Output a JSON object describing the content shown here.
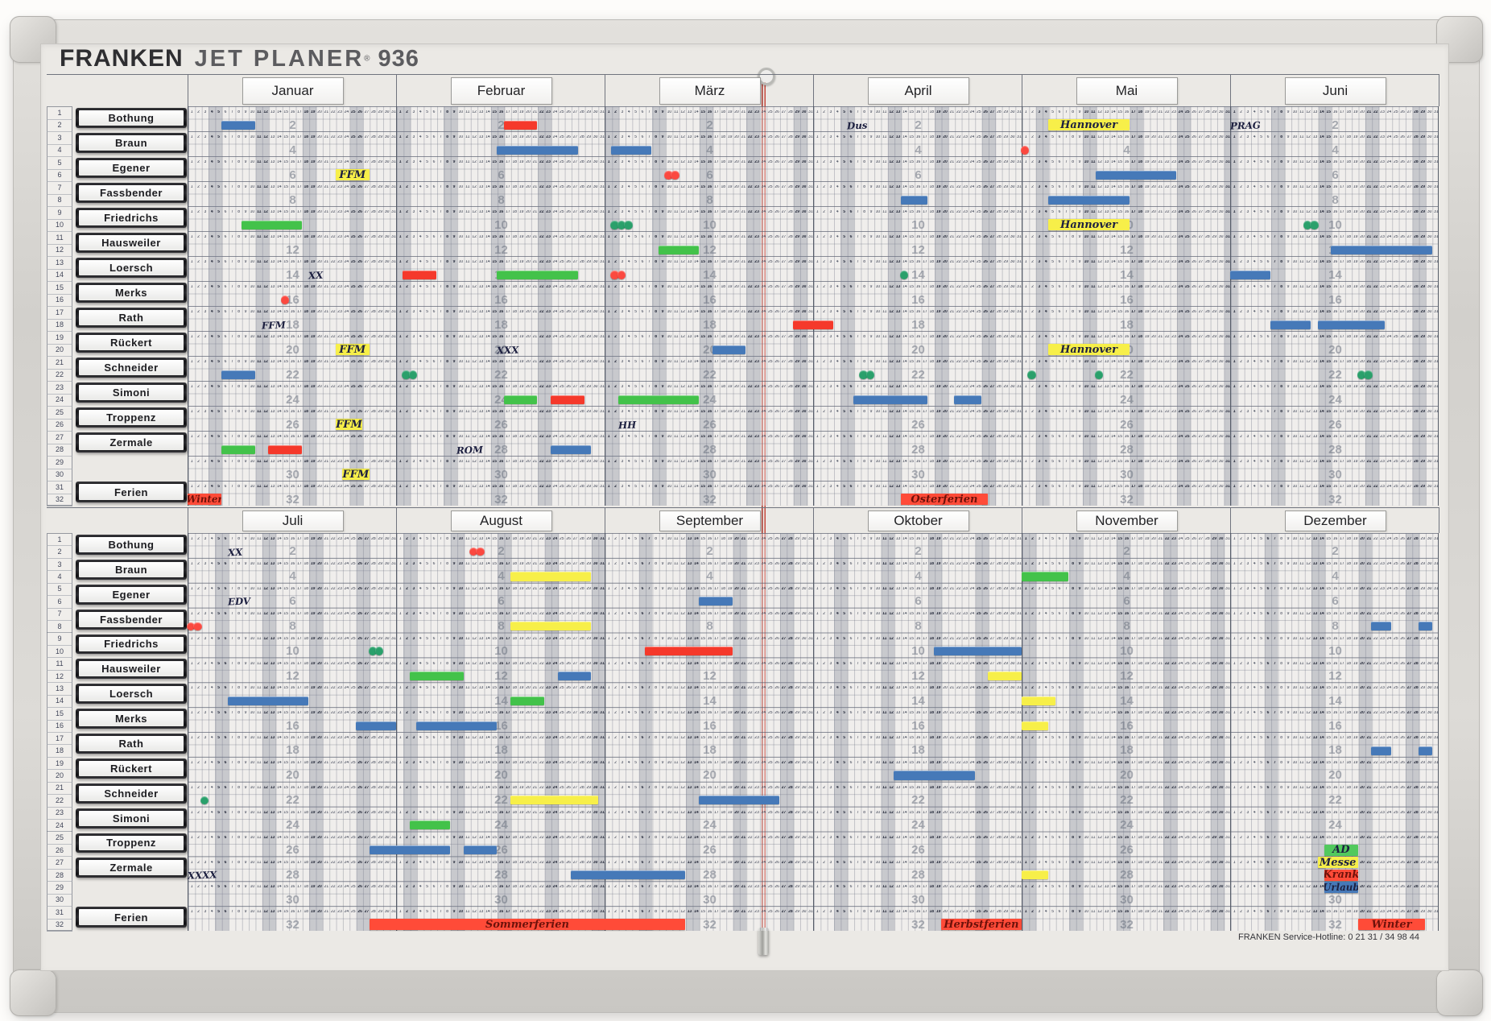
{
  "title": {
    "brand": "FRANKEN",
    "product": "JET PLANER",
    "registered": "®",
    "model": "936"
  },
  "footer": {
    "service_hotline": "FRANKEN Service-Hotline: 0 21 31 / 34 98 44"
  },
  "rows_per_half": 32,
  "days_per_strip": 31,
  "personnel": [
    "Bothung",
    "Braun",
    "Egener",
    "Fassbender",
    "Friedrichs",
    "Hausweiler",
    "Loersch",
    "Merks",
    "Rath",
    "Rückert",
    "Schneider",
    "Simoni",
    "Troppenz",
    "Zermale"
  ],
  "ferien_label": "Ferien",
  "months": [
    {
      "name": "Januar",
      "weekend_days": [
        4,
        5,
        11,
        12,
        18,
        19,
        25,
        26
      ]
    },
    {
      "name": "Februar",
      "weekend_days": [
        1,
        2,
        8,
        9,
        15,
        16,
        22,
        23
      ]
    },
    {
      "name": "März",
      "weekend_days": [
        1,
        2,
        8,
        9,
        15,
        16,
        22,
        23,
        29,
        30
      ]
    },
    {
      "name": "April",
      "weekend_days": [
        5,
        6,
        12,
        13,
        19,
        20,
        26,
        27
      ]
    },
    {
      "name": "Mai",
      "weekend_days": [
        3,
        4,
        10,
        11,
        17,
        18,
        24,
        25,
        31
      ]
    },
    {
      "name": "Juni",
      "weekend_days": [
        1,
        7,
        8,
        14,
        15,
        21,
        22,
        28,
        29
      ]
    },
    {
      "name": "Juli",
      "weekend_days": [
        5,
        6,
        12,
        13,
        19,
        20,
        26,
        27
      ]
    },
    {
      "name": "August",
      "weekend_days": [
        2,
        3,
        9,
        10,
        16,
        17,
        23,
        24,
        30,
        31
      ]
    },
    {
      "name": "September",
      "weekend_days": [
        6,
        7,
        13,
        14,
        20,
        21,
        27,
        28
      ]
    },
    {
      "name": "Oktober",
      "weekend_days": [
        4,
        5,
        11,
        12,
        18,
        19,
        25,
        26
      ]
    },
    {
      "name": "November",
      "weekend_days": [
        1,
        2,
        8,
        9,
        15,
        16,
        22,
        23,
        29,
        30
      ]
    },
    {
      "name": "Dezember",
      "weekend_days": [
        6,
        7,
        13,
        14,
        20,
        21,
        27,
        28
      ]
    }
  ],
  "colors": {
    "blue": "#4679b8",
    "green": "#43c24a",
    "red": "#f5392b",
    "yellow": "#f7ef49",
    "dot_green": "#2aa06b",
    "dot_red": "#fb4940",
    "tag_red": "#ff4b38",
    "tag_green": "#52c95d",
    "ink": "#1d2040",
    "red_ink": "#6e120b",
    "weekend": "rgba(122,129,147,0.34)"
  },
  "magnets": [
    {
      "p": "Bothung",
      "r": 2,
      "m": "Januar",
      "d1": 6,
      "d2": 10,
      "k": "bar",
      "c": "blue"
    },
    {
      "p": "Bothung",
      "r": 2,
      "m": "Februar",
      "d1": 17,
      "d2": 21,
      "k": "bar",
      "c": "red"
    },
    {
      "p": "Bothung",
      "r": 2,
      "m": "April",
      "d1": 6,
      "d2": 9,
      "k": "note",
      "t": "Dus"
    },
    {
      "p": "Bothung",
      "r": 2,
      "m": "Mai",
      "d1": 5,
      "d2": 16,
      "k": "tag",
      "c": "yellow",
      "t": "Hannover"
    },
    {
      "p": "Bothung",
      "r": 2,
      "m": "Juni",
      "d1": 1,
      "d2": 4,
      "k": "note",
      "t": "PRAG"
    },
    {
      "p": "Braun",
      "r": 4,
      "m": "Februar",
      "d1": 16,
      "d2": 27,
      "k": "bar",
      "c": "blue"
    },
    {
      "p": "Braun",
      "r": 4,
      "m": "März",
      "d1": 2,
      "d2": 7,
      "k": "bar",
      "c": "blue"
    },
    {
      "p": "Braun",
      "r": 4,
      "m": "Mai",
      "d1": 1,
      "d2": 1,
      "k": "dot",
      "c": "red"
    },
    {
      "p": "Egener",
      "r": 6,
      "m": "Januar",
      "d1": 23,
      "d2": 27,
      "k": "tag",
      "c": "yellow",
      "t": "FFM"
    },
    {
      "p": "Egener",
      "r": 6,
      "m": "März",
      "d1": 10,
      "d2": 11,
      "k": "dot",
      "c": "red"
    },
    {
      "p": "Egener",
      "r": 6,
      "m": "Mai",
      "d1": 12,
      "d2": 23,
      "k": "bar",
      "c": "blue"
    },
    {
      "p": "Fassbender",
      "r": 8,
      "m": "April",
      "d1": 14,
      "d2": 17,
      "k": "bar",
      "c": "blue"
    },
    {
      "p": "Fassbender",
      "r": 8,
      "m": "Mai",
      "d1": 5,
      "d2": 16,
      "k": "bar",
      "c": "blue"
    },
    {
      "p": "Friedrichs",
      "r": 10,
      "m": "Januar",
      "d1": 9,
      "d2": 17,
      "k": "bar",
      "c": "green"
    },
    {
      "p": "Friedrichs",
      "r": 10,
      "m": "März",
      "d1": 2,
      "d2": 4,
      "k": "dot",
      "c": "green"
    },
    {
      "p": "Friedrichs",
      "r": 10,
      "m": "Mai",
      "d1": 5,
      "d2": 16,
      "k": "tag",
      "c": "yellow",
      "t": "Hannover"
    },
    {
      "p": "Friedrichs",
      "r": 10,
      "m": "Juni",
      "d1": 12,
      "d2": 13,
      "k": "dot",
      "c": "green"
    },
    {
      "p": "Hausweiler",
      "r": 12,
      "m": "März",
      "d1": 9,
      "d2": 14,
      "k": "bar",
      "c": "green"
    },
    {
      "p": "Hausweiler",
      "r": 12,
      "m": "Juni",
      "d1": 16,
      "d2": 30,
      "k": "bar",
      "c": "blue"
    },
    {
      "p": "Loersch",
      "r": 14,
      "m": "Januar",
      "d1": 19,
      "d2": 20,
      "k": "note",
      "t": "XX"
    },
    {
      "p": "Loersch",
      "r": 14,
      "m": "Februar",
      "d1": 2,
      "d2": 6,
      "k": "bar",
      "c": "red"
    },
    {
      "p": "Loersch",
      "r": 14,
      "m": "Februar",
      "d1": 16,
      "d2": 27,
      "k": "bar",
      "c": "green"
    },
    {
      "p": "Loersch",
      "r": 14,
      "m": "März",
      "d1": 2,
      "d2": 3,
      "k": "dot",
      "c": "red"
    },
    {
      "p": "Loersch",
      "r": 14,
      "m": "April",
      "d1": 14,
      "d2": 14,
      "k": "dot",
      "c": "green"
    },
    {
      "p": "Loersch",
      "r": 14,
      "m": "Juni",
      "d1": 1,
      "d2": 6,
      "k": "bar",
      "c": "blue"
    },
    {
      "p": "Merks",
      "r": 16,
      "m": "Januar",
      "d1": 15,
      "d2": 15,
      "k": "dot",
      "c": "red"
    },
    {
      "p": "Rath",
      "r": 18,
      "m": "Januar",
      "d1": 12,
      "d2": 14,
      "k": "note",
      "t": "FFM"
    },
    {
      "p": "Rath",
      "r": 18,
      "m": "März",
      "d1": 29,
      "m2": "April",
      "d2": 3,
      "k": "bar",
      "c": "red"
    },
    {
      "p": "Rath",
      "r": 18,
      "m": "Juni",
      "d1": 7,
      "d2": 12,
      "k": "bar",
      "c": "blue"
    },
    {
      "p": "Rath",
      "r": 18,
      "m": "Juni",
      "d1": 14,
      "d2": 23,
      "k": "bar",
      "c": "blue"
    },
    {
      "p": "Rückert",
      "r": 20,
      "m": "Januar",
      "d1": 23,
      "d2": 27,
      "k": "tag",
      "c": "yellow",
      "t": "FFM"
    },
    {
      "p": "Rückert",
      "r": 20,
      "m": "Februar",
      "d1": 16,
      "d2": 19,
      "k": "note",
      "t": "XXX"
    },
    {
      "p": "Rückert",
      "r": 20,
      "m": "März",
      "d1": 17,
      "d2": 21,
      "k": "bar",
      "c": "blue"
    },
    {
      "p": "Rückert",
      "r": 20,
      "m": "Mai",
      "d1": 5,
      "d2": 16,
      "k": "tag",
      "c": "yellow",
      "t": "Hannover"
    },
    {
      "p": "Schneider",
      "r": 22,
      "m": "Januar",
      "d1": 6,
      "d2": 10,
      "k": "bar",
      "c": "blue"
    },
    {
      "p": "Schneider",
      "r": 22,
      "m": "Februar",
      "d1": 2,
      "d2": 3,
      "k": "dot",
      "c": "green"
    },
    {
      "p": "Schneider",
      "r": 22,
      "m": "April",
      "d1": 8,
      "d2": 9,
      "k": "dot",
      "c": "green"
    },
    {
      "p": "Schneider",
      "r": 22,
      "m": "Mai",
      "d1": 2,
      "d2": 2,
      "k": "dot",
      "c": "green"
    },
    {
      "p": "Schneider",
      "r": 22,
      "m": "Mai",
      "d1": 12,
      "d2": 12,
      "k": "dot",
      "c": "green"
    },
    {
      "p": "Schneider",
      "r": 22,
      "m": "Juni",
      "d1": 20,
      "d2": 21,
      "k": "dot",
      "c": "green"
    },
    {
      "p": "Simoni",
      "r": 24,
      "m": "Februar",
      "d1": 17,
      "d2": 21,
      "k": "bar",
      "c": "green"
    },
    {
      "p": "Simoni",
      "r": 24,
      "m": "Februar",
      "d1": 24,
      "d2": 28,
      "k": "bar",
      "c": "red"
    },
    {
      "p": "Simoni",
      "r": 24,
      "m": "März",
      "d1": 3,
      "d2": 14,
      "k": "bar",
      "c": "green"
    },
    {
      "p": "Simoni",
      "r": 24,
      "m": "April",
      "d1": 7,
      "d2": 17,
      "k": "bar",
      "c": "blue"
    },
    {
      "p": "Simoni",
      "r": 24,
      "m": "April",
      "d1": 22,
      "d2": 25,
      "k": "bar",
      "c": "blue"
    },
    {
      "p": "Troppenz",
      "r": 26,
      "m": "Januar",
      "d1": 23,
      "d2": 26,
      "k": "tag",
      "c": "yellow",
      "t": "FFM"
    },
    {
      "p": "Troppenz",
      "r": 26,
      "m": "März",
      "d1": 3,
      "d2": 4,
      "k": "note",
      "t": "HH"
    },
    {
      "p": "Zermale",
      "r": 28,
      "m": "Januar",
      "d1": 6,
      "d2": 10,
      "k": "bar",
      "c": "green"
    },
    {
      "p": "Zermale",
      "r": 28,
      "m": "Januar",
      "d1": 13,
      "d2": 17,
      "k": "bar",
      "c": "red"
    },
    {
      "p": "Zermale",
      "r": 28,
      "m": "Februar",
      "d1": 10,
      "d2": 13,
      "k": "note",
      "t": "ROM"
    },
    {
      "p": "Zermale",
      "r": 28,
      "m": "Februar",
      "d1": 24,
      "d2": 29,
      "k": "bar",
      "c": "blue"
    },
    {
      "p": "",
      "r": 30,
      "m": "Januar",
      "d1": 24,
      "d2": 27,
      "k": "tag",
      "c": "yellow",
      "t": "FFM"
    },
    {
      "p": "Ferien",
      "r": 32,
      "m": "Januar",
      "d1": 1,
      "d2": 5,
      "k": "tag",
      "c": "red",
      "t": "Winter"
    },
    {
      "p": "Ferien",
      "r": 32,
      "m": "April",
      "d1": 14,
      "d2": 26,
      "k": "tag",
      "c": "red",
      "t": "Osterferien"
    },
    {
      "p": "Bothung",
      "r": 2,
      "m": "Juli",
      "d1": 7,
      "d2": 8,
      "k": "note",
      "t": "XX"
    },
    {
      "p": "Bothung",
      "r": 2,
      "m": "August",
      "d1": 12,
      "d2": 13,
      "k": "dot",
      "c": "red"
    },
    {
      "p": "Braun",
      "r": 4,
      "m": "August",
      "d1": 18,
      "d2": 29,
      "k": "bar",
      "c": "yellow"
    },
    {
      "p": "Braun",
      "r": 4,
      "m": "November",
      "d1": 1,
      "d2": 7,
      "k": "bar",
      "c": "green"
    },
    {
      "p": "Egener",
      "r": 6,
      "m": "Juli",
      "d1": 7,
      "d2": 8,
      "k": "note",
      "t": "EDV"
    },
    {
      "p": "Egener",
      "r": 6,
      "m": "September",
      "d1": 15,
      "d2": 19,
      "k": "bar",
      "c": "blue"
    },
    {
      "p": "Fassbender",
      "r": 8,
      "m": "Juli",
      "d1": 1,
      "d2": 2,
      "k": "dot",
      "c": "red"
    },
    {
      "p": "Fassbender",
      "r": 8,
      "m": "August",
      "d1": 18,
      "d2": 29,
      "k": "bar",
      "c": "yellow"
    },
    {
      "p": "Fassbender",
      "r": 8,
      "m": "Dezember",
      "d1": 22,
      "d2": 24,
      "k": "bar",
      "c": "blue"
    },
    {
      "p": "Fassbender",
      "r": 8,
      "m": "Dezember",
      "d1": 29,
      "d2": 30,
      "k": "bar",
      "c": "blue"
    },
    {
      "p": "Friedrichs",
      "r": 10,
      "m": "Juli",
      "d1": 28,
      "d2": 29,
      "k": "dot",
      "c": "green"
    },
    {
      "p": "Friedrichs",
      "r": 10,
      "m": "September",
      "d1": 7,
      "d2": 19,
      "k": "bar",
      "c": "red"
    },
    {
      "p": "Friedrichs",
      "r": 10,
      "m": "Oktober",
      "d1": 19,
      "d2": 31,
      "k": "bar",
      "c": "blue"
    },
    {
      "p": "Hausweiler",
      "r": 12,
      "m": "August",
      "d1": 3,
      "d2": 10,
      "k": "bar",
      "c": "green"
    },
    {
      "p": "Hausweiler",
      "r": 12,
      "m": "August",
      "d1": 25,
      "d2": 29,
      "k": "bar",
      "c": "blue"
    },
    {
      "p": "Hausweiler",
      "r": 12,
      "m": "Oktober",
      "d1": 27,
      "d2": 31,
      "k": "bar",
      "c": "yellow"
    },
    {
      "p": "Loersch",
      "r": 14,
      "m": "Juli",
      "d1": 7,
      "d2": 18,
      "k": "bar",
      "c": "blue"
    },
    {
      "p": "Loersch",
      "r": 14,
      "m": "August",
      "d1": 18,
      "d2": 22,
      "k": "bar",
      "c": "green"
    },
    {
      "p": "Loersch",
      "r": 14,
      "m": "November",
      "d1": 1,
      "d2": 5,
      "k": "bar",
      "c": "yellow"
    },
    {
      "p": "Merks",
      "r": 16,
      "m": "Juli",
      "d1": 26,
      "d2": 31,
      "k": "bar",
      "c": "blue"
    },
    {
      "p": "Merks",
      "r": 16,
      "m": "August",
      "d1": 4,
      "d2": 15,
      "k": "bar",
      "c": "blue"
    },
    {
      "p": "Merks",
      "r": 16,
      "m": "November",
      "d1": 1,
      "d2": 4,
      "k": "bar",
      "c": "yellow"
    },
    {
      "p": "Rath",
      "r": 18,
      "m": "Dezember",
      "d1": 22,
      "d2": 24,
      "k": "bar",
      "c": "blue"
    },
    {
      "p": "Rath",
      "r": 18,
      "m": "Dezember",
      "d1": 29,
      "d2": 30,
      "k": "bar",
      "c": "blue"
    },
    {
      "p": "Rückert",
      "r": 20,
      "m": "Oktober",
      "d1": 13,
      "d2": 24,
      "k": "bar",
      "c": "blue"
    },
    {
      "p": "Schneider",
      "r": 22,
      "m": "Juli",
      "d1": 3,
      "d2": 3,
      "k": "dot",
      "c": "green"
    },
    {
      "p": "Schneider",
      "r": 22,
      "m": "August",
      "d1": 18,
      "d2": 30,
      "k": "bar",
      "c": "yellow"
    },
    {
      "p": "Schneider",
      "r": 22,
      "m": "September",
      "d1": 15,
      "d2": 26,
      "k": "bar",
      "c": "blue"
    },
    {
      "p": "Simoni",
      "r": 24,
      "m": "August",
      "d1": 3,
      "d2": 8,
      "k": "bar",
      "c": "green"
    },
    {
      "p": "Troppenz",
      "r": 26,
      "m": "Juli",
      "d1": 28,
      "m2": "August",
      "d2": 8,
      "k": "bar",
      "c": "blue"
    },
    {
      "p": "Troppenz",
      "r": 26,
      "m": "August",
      "d1": 11,
      "d2": 15,
      "k": "bar",
      "c": "blue"
    },
    {
      "p": "Zermale",
      "r": 28,
      "m": "Juli",
      "d1": 1,
      "d2": 4,
      "k": "note",
      "t": "XXXX"
    },
    {
      "p": "Zermale",
      "r": 28,
      "m": "August",
      "d1": 27,
      "m2": "September",
      "d2": 12,
      "k": "bar",
      "c": "blue"
    },
    {
      "p": "Zermale",
      "r": 28,
      "m": "November",
      "d1": 1,
      "d2": 4,
      "k": "bar",
      "c": "yellow"
    },
    {
      "p": "",
      "r": 26,
      "m": "Dezember",
      "d1": 15,
      "d2": 19,
      "k": "tag",
      "c": "green",
      "t": "AD"
    },
    {
      "p": "",
      "r": 27,
      "m": "Dezember",
      "d1": 14,
      "d2": 19,
      "k": "tag",
      "c": "yellow",
      "t": "Messe"
    },
    {
      "p": "",
      "r": 28,
      "m": "Dezember",
      "d1": 15,
      "d2": 19,
      "k": "tag",
      "c": "red",
      "t": "Krank"
    },
    {
      "p": "",
      "r": 29,
      "m": "Dezember",
      "d1": 15,
      "d2": 19,
      "k": "tag",
      "c": "blue",
      "t": "Urlaub"
    },
    {
      "p": "Ferien",
      "r": 32,
      "m": "Juli",
      "d1": 28,
      "m2": "September",
      "d2": 12,
      "k": "tag",
      "c": "red",
      "t": "Sommerferien"
    },
    {
      "p": "Ferien",
      "r": 32,
      "m": "Oktober",
      "d1": 20,
      "d2": 31,
      "k": "tag",
      "c": "red",
      "t": "Herbstferien"
    },
    {
      "p": "Ferien",
      "r": 32,
      "m": "Dezember",
      "d1": 20,
      "d2": 29,
      "k": "tag",
      "c": "red",
      "t": "Winter"
    }
  ]
}
